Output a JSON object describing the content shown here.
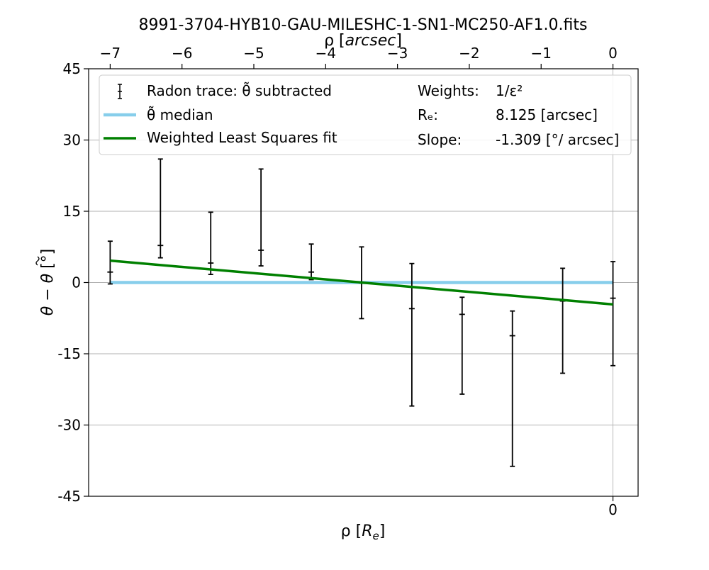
{
  "chart_data": {
    "type": "scatter",
    "title": "8991-3704-HYB10-GAU-MILESHC-1-SN1-MC250-AF1.0.fits",
    "xlabel": "ρ [R_e]",
    "ylabel": "θ − θ̃ [°]",
    "top_xlabel": "ρ [arcsec]",
    "xlim": [
      -7.3,
      0.35
    ],
    "ylim": [
      -45,
      45
    ],
    "yticks": [
      -45,
      -30,
      -15,
      0,
      15,
      30,
      45
    ],
    "ytick_labels": [
      "-45",
      "-30",
      "-15",
      "0",
      "15",
      "30",
      "45"
    ],
    "xticks_bottom": [
      0
    ],
    "xtick_labels_bottom": [
      "0"
    ],
    "xticks_top": [
      -7,
      -6,
      -5,
      -4,
      -3,
      -2,
      -1,
      0
    ],
    "xtick_labels_top": [
      "−7",
      "−6",
      "−5",
      "−4",
      "−3",
      "−2",
      "−1",
      "0"
    ],
    "grid": true,
    "legend_position": "top",
    "series": [
      {
        "name": "Radon trace: θ̃ subtracted",
        "kind": "errorbar",
        "color": "#000000",
        "x": [
          -7.0,
          -6.3,
          -5.6,
          -4.9,
          -4.2,
          -3.5,
          -2.8,
          -2.1,
          -1.4,
          -0.7,
          0.0
        ],
        "y": [
          2.2,
          7.8,
          4.1,
          6.8,
          2.2,
          -0.1,
          -5.5,
          -6.7,
          -11.2,
          -3.9,
          -3.3
        ],
        "yerr_low": [
          2.5,
          2.6,
          2.4,
          3.3,
          1.6,
          7.5,
          20.5,
          16.8,
          27.5,
          15.2,
          14.2
        ],
        "yerr_high": [
          6.5,
          18.2,
          10.7,
          17.1,
          5.9,
          7.6,
          9.5,
          3.6,
          5.2,
          6.9,
          7.7
        ]
      },
      {
        "name": "θ̃ median",
        "kind": "line",
        "color": "#87CEEB",
        "x": [
          -7.0,
          0.0
        ],
        "y": [
          0,
          0
        ]
      },
      {
        "name": "Weighted Least Squares fit",
        "kind": "line",
        "color": "#008000",
        "x": [
          -7.0,
          0.0
        ],
        "y": [
          4.6,
          -4.6
        ]
      }
    ],
    "annotations": {
      "weights_label": "Weights:",
      "weights_value": "1/ε²",
      "re_label": "Rₑ:",
      "re_value": "8.125 [arcsec]",
      "slope_label": "Slope:",
      "slope_value": "-1.309 [°/ arcsec]"
    }
  }
}
